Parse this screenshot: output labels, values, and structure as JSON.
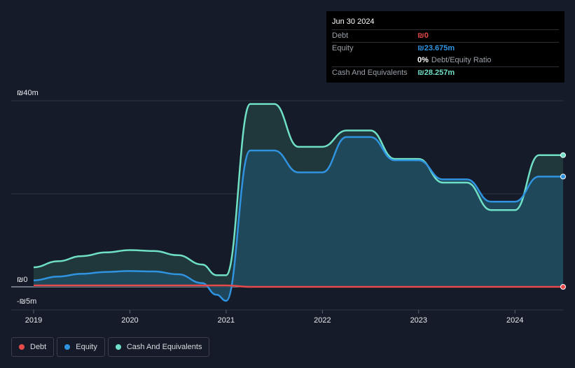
{
  "tooltip": {
    "date": "Jun 30 2024",
    "rows": [
      {
        "label": "Debt",
        "value": "₪0",
        "color": "#e64a4a"
      },
      {
        "label": "Equity",
        "value": "₪23.675m",
        "color": "#2f93e0"
      },
      {
        "label": "",
        "value": "0%",
        "sub": "Debt/Equity Ratio",
        "color": "#ffffff"
      },
      {
        "label": "Cash And Equivalents",
        "value": "₪28.257m",
        "color": "#6fe0c6"
      }
    ]
  },
  "legend": [
    {
      "label": "Debt",
      "color": "#e64a4a"
    },
    {
      "label": "Equity",
      "color": "#2f93e0"
    },
    {
      "label": "Cash And Equivalents",
      "color": "#6fe0c6"
    }
  ],
  "chart_data": {
    "type": "area",
    "y_tick_labels": [
      "₪40m",
      "₪0",
      "-₪5m"
    ],
    "y_ticks": [
      40,
      0,
      -5
    ],
    "ylim": [
      -5,
      40
    ],
    "x_tick_labels": [
      "2019",
      "2020",
      "2021",
      "2022",
      "2023",
      "2024"
    ],
    "x_ticks": [
      2019,
      2020,
      2021,
      2022,
      2023,
      2024
    ],
    "xlim": [
      2019,
      2024.5
    ],
    "series": [
      {
        "name": "Debt",
        "color": "#e64a4a",
        "x": [
          2019.0,
          2019.5,
          2020.0,
          2020.5,
          2020.75,
          2021.0,
          2021.25,
          2021.5,
          2022.0,
          2022.5,
          2023.0,
          2023.5,
          2024.0,
          2024.5
        ],
        "values": [
          0.3,
          0.3,
          0.3,
          0.3,
          0.3,
          0.3,
          0,
          0,
          0,
          0,
          0,
          0,
          0,
          0
        ]
      },
      {
        "name": "Equity",
        "color": "#2f93e0",
        "x": [
          2019.0,
          2019.25,
          2019.5,
          2019.75,
          2020.0,
          2020.25,
          2020.5,
          2020.75,
          2020.9,
          2021.0,
          2021.25,
          2021.5,
          2021.75,
          2022.0,
          2022.25,
          2022.5,
          2022.75,
          2023.0,
          2023.25,
          2023.5,
          2023.75,
          2024.0,
          2024.25,
          2024.5
        ],
        "values": [
          1.4,
          2.2,
          2.8,
          3.2,
          3.4,
          3.3,
          2.7,
          0.8,
          -1.7,
          -3.0,
          29.3,
          29.3,
          24.6,
          24.6,
          32.2,
          32.2,
          27.2,
          27.2,
          23.1,
          23.1,
          18.3,
          18.3,
          23.7,
          23.7
        ]
      },
      {
        "name": "Cash And Equivalents",
        "color": "#6fe0c6",
        "x": [
          2019.0,
          2019.25,
          2019.5,
          2019.75,
          2020.0,
          2020.25,
          2020.5,
          2020.75,
          2020.9,
          2021.0,
          2021.25,
          2021.5,
          2021.75,
          2022.0,
          2022.25,
          2022.5,
          2022.75,
          2023.0,
          2023.25,
          2023.5,
          2023.75,
          2024.0,
          2024.25,
          2024.5
        ],
        "values": [
          4.2,
          5.5,
          6.6,
          7.4,
          7.9,
          7.7,
          6.8,
          4.8,
          2.5,
          2.5,
          39.3,
          39.3,
          30.1,
          30.1,
          33.6,
          33.6,
          27.5,
          27.5,
          22.4,
          22.4,
          16.5,
          16.5,
          28.3,
          28.3
        ]
      }
    ]
  }
}
